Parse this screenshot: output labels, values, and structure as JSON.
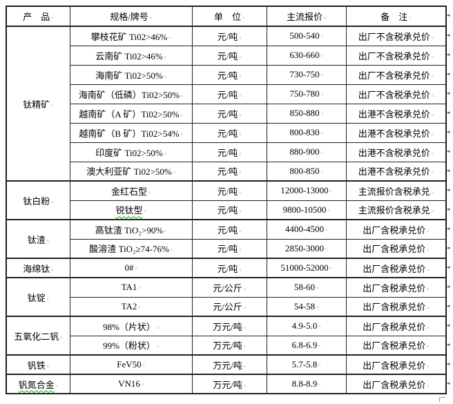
{
  "table": {
    "headers": [
      "产　品",
      "规格/牌号",
      "单　位",
      "主流报价",
      "备　注"
    ],
    "groups": [
      {
        "product": "钛精矿",
        "items": [
          {
            "spec": "攀枝花矿 Ti02>46%",
            "unit": "元/吨",
            "price": "500-540",
            "note": "出厂不含税承兑价"
          },
          {
            "spec": "云南矿 Ti02>46%",
            "unit": "元/吨",
            "price": "630-660",
            "note": "出厂不含税承兑价"
          },
          {
            "spec": "海南矿 Ti02>50%",
            "unit": "元/吨",
            "price": "730-750",
            "note": "出厂不含税承兑价"
          },
          {
            "spec": "海南矿（低磷）Ti02>50%",
            "unit": "元/吨",
            "price": "750-780",
            "note": "出厂不含税承兑价"
          },
          {
            "spec": "越南矿（A 矿）Ti02>50%",
            "unit": "元/吨",
            "price": "850-880",
            "note": "出港不含税承兑价"
          },
          {
            "spec": "越南矿（B 矿）Ti02>54%",
            "unit": "元/吨",
            "price": "800-830",
            "note": "出港不含税承兑价"
          },
          {
            "spec": "印度矿 Ti02>50%",
            "unit": "元/吨",
            "price": "880-900",
            "note": "出港不含税承兑价"
          },
          {
            "spec": "澳大利亚矿 Ti02>50%",
            "unit": "元/吨",
            "price": "800-850",
            "note": "出港不含税承兑价"
          }
        ]
      },
      {
        "product": "钛白粉",
        "items": [
          {
            "spec": "金红石型",
            "unit": "元/吨",
            "price": "12000-13000",
            "note": "主流报价含税承兑"
          },
          {
            "spec": "锐钛型",
            "unit": "元/吨",
            "price": "9800-10500",
            "note": "主流报价含税承兑",
            "spellcheck": true
          }
        ]
      },
      {
        "product": "钛渣",
        "items": [
          {
            "spec": "高钛渣 TiO₂>90%",
            "unit": "元/吨",
            "price": "4400-4500",
            "note": "出厂含税承兑价"
          },
          {
            "spec": "酸溶渣 TiO₂≥74-76%",
            "unit": "元/吨",
            "price": "2850-3000",
            "note": "出厂含税承兑价"
          }
        ]
      },
      {
        "product": "海绵钛",
        "items": [
          {
            "spec": "0#",
            "unit": "元/吨",
            "price": "51000-52000",
            "note": "出厂含税承兑价"
          }
        ]
      },
      {
        "product": "钛锭",
        "items": [
          {
            "spec": "TA1",
            "unit": "元/公斤",
            "price": "58-60",
            "note": "出厂含税承兑价"
          },
          {
            "spec": "TA2",
            "unit": "元/公斤",
            "price": "54-58",
            "note": "出厂含税承兑价"
          }
        ]
      },
      {
        "product": "五氧化二钒",
        "items": [
          {
            "spec": "98%（片状）",
            "unit": "万元/吨",
            "price": "4.9-5.0",
            "note": "出厂含税承兑价"
          },
          {
            "spec": "99%（粉状）",
            "unit": "万元/吨",
            "price": "6.8-6.9",
            "note": "出厂含税承兑价"
          }
        ]
      },
      {
        "product": "钒铁",
        "items": [
          {
            "spec": "FeV50",
            "unit": "万元/吨",
            "price": "5.7-5.8",
            "note": "出厂含税承兑价"
          }
        ]
      },
      {
        "product": "钒氮合金",
        "product_spellcheck": true,
        "items": [
          {
            "spec": "VN16",
            "unit": "万元/吨",
            "price": "8.8-8.9",
            "note": "出厂含税承兑价"
          }
        ]
      }
    ]
  },
  "formatting_marks": {
    "cell_end": "¤",
    "row_end": "◄"
  },
  "colors": {
    "border": "#1f1f1f",
    "text": "#000000",
    "spellcheck_underline": "#00b400",
    "mark_gray": "#8a8a8a"
  }
}
